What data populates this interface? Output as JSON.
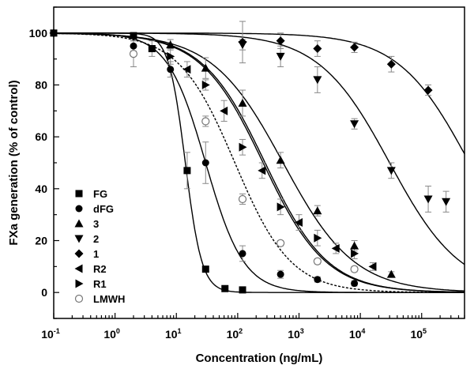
{
  "chart_data": {
    "type": "scatter",
    "title": "",
    "xlabel": "Concentration (ng/mL)",
    "ylabel": "FXa generation (% of control)",
    "xscale": "log",
    "xlim": [
      0.1,
      500000
    ],
    "ylim": [
      -10,
      110
    ],
    "x_ticks": [
      {
        "value": 0.1,
        "base": "10",
        "exp": "-1"
      },
      {
        "value": 1,
        "base": "10",
        "exp": "0"
      },
      {
        "value": 10,
        "base": "10",
        "exp": "1"
      },
      {
        "value": 100,
        "base": "10",
        "exp": "2"
      },
      {
        "value": 1000,
        "base": "10",
        "exp": "3"
      },
      {
        "value": 10000,
        "base": "10",
        "exp": "4"
      },
      {
        "value": 100000,
        "base": "10",
        "exp": "5"
      }
    ],
    "y_ticks": [
      {
        "value": 0,
        "label": "0"
      },
      {
        "value": 20,
        "label": "20"
      },
      {
        "value": 40,
        "label": "40"
      },
      {
        "value": 60,
        "label": "60"
      },
      {
        "value": 80,
        "label": "80"
      },
      {
        "value": 100,
        "label": "100"
      }
    ],
    "grid": false,
    "legend_position": "bottom-left",
    "series": [
      {
        "name": "FG",
        "marker": "square",
        "fit": {
          "ic50": 14,
          "hill": 3.2,
          "style": "solid"
        },
        "points": [
          {
            "x": 0.1,
            "y": 100,
            "err": 1
          },
          {
            "x": 2,
            "y": 99,
            "err": 1
          },
          {
            "x": 4,
            "y": 94,
            "err": 3
          },
          {
            "x": 15,
            "y": 47,
            "err": 7
          },
          {
            "x": 30,
            "y": 9,
            "err": 1
          },
          {
            "x": 62,
            "y": 1.5,
            "err": 0.5
          },
          {
            "x": 120,
            "y": 1,
            "err": 0.5
          }
        ]
      },
      {
        "name": "dFG",
        "marker": "circle",
        "fit": {
          "ic50": 30,
          "hill": 1.4,
          "style": "solid"
        },
        "points": [
          {
            "x": 2,
            "y": 95,
            "err": 2
          },
          {
            "x": 8,
            "y": 86,
            "err": 3
          },
          {
            "x": 30,
            "y": 50,
            "err": 8
          },
          {
            "x": 120,
            "y": 15,
            "err": 3
          },
          {
            "x": 500,
            "y": 7,
            "err": 1.5
          },
          {
            "x": 2000,
            "y": 5,
            "err": 1
          },
          {
            "x": 8000,
            "y": 3.5,
            "err": 1
          }
        ]
      },
      {
        "name": "3",
        "marker": "triangle-up",
        "fit": {
          "ic50": 550,
          "hill": 0.75,
          "style": "solid"
        },
        "points": [
          {
            "x": 8,
            "y": 95.5,
            "err": 2
          },
          {
            "x": 30,
            "y": 86.5,
            "err": 4
          },
          {
            "x": 120,
            "y": 73,
            "err": 5
          },
          {
            "x": 500,
            "y": 51,
            "err": 3
          },
          {
            "x": 2000,
            "y": 31.5,
            "err": 2
          },
          {
            "x": 8000,
            "y": 18,
            "err": 2
          },
          {
            "x": 32000,
            "y": 7,
            "err": 1
          }
        ]
      },
      {
        "name": "2",
        "marker": "triangle-down",
        "fit": {
          "ic50": 30000,
          "hill": 0.75,
          "style": "solid"
        },
        "points": [
          {
            "x": 120,
            "y": 95.5,
            "err": 2
          },
          {
            "x": 500,
            "y": 91,
            "err": 4
          },
          {
            "x": 2000,
            "y": 82,
            "err": 5
          },
          {
            "x": 8000,
            "y": 65,
            "err": 2
          },
          {
            "x": 32000,
            "y": 47,
            "err": 3
          },
          {
            "x": 128000,
            "y": 36,
            "err": 5
          },
          {
            "x": 250000,
            "y": 35,
            "err": 4
          }
        ]
      },
      {
        "name": "1",
        "marker": "diamond",
        "fit": {
          "ic50": 600000,
          "hill": 0.75,
          "style": "solid"
        },
        "points": [
          {
            "x": 0.1,
            "y": 100,
            "err": 1
          },
          {
            "x": 120,
            "y": 96.5,
            "err": 8
          },
          {
            "x": 500,
            "y": 97,
            "err": 3
          },
          {
            "x": 2000,
            "y": 94,
            "err": 3
          },
          {
            "x": 8000,
            "y": 94.5,
            "err": 2
          },
          {
            "x": 32000,
            "y": 88,
            "err": 3
          },
          {
            "x": 128000,
            "y": 78,
            "err": 2
          }
        ]
      },
      {
        "name": "R2",
        "marker": "triangle-left",
        "fit": {
          "ic50": 280,
          "hill": 0.85,
          "style": "solid"
        },
        "points": [
          {
            "x": 15,
            "y": 86,
            "err": 3
          },
          {
            "x": 60,
            "y": 70,
            "err": 4
          },
          {
            "x": 250,
            "y": 47,
            "err": 3
          },
          {
            "x": 1000,
            "y": 27,
            "err": 3
          },
          {
            "x": 4000,
            "y": 17,
            "err": 2
          },
          {
            "x": 16000,
            "y": 10,
            "err": 1.5
          }
        ]
      },
      {
        "name": "R1",
        "marker": "triangle-right",
        "fit": {
          "ic50": 260,
          "hill": 0.85,
          "style": "solid"
        },
        "points": [
          {
            "x": 8,
            "y": 91,
            "err": 3
          },
          {
            "x": 30,
            "y": 80,
            "err": 2
          },
          {
            "x": 120,
            "y": 56,
            "err": 3
          },
          {
            "x": 500,
            "y": 33,
            "err": 3
          },
          {
            "x": 2000,
            "y": 21,
            "err": 3
          },
          {
            "x": 8000,
            "y": 15,
            "err": 2
          }
        ]
      },
      {
        "name": "LMWH",
        "marker": "open-circle",
        "fit": {
          "ic50": 90,
          "hill": 0.95,
          "style": "dashed"
        },
        "points": [
          {
            "x": 2,
            "y": 92,
            "err": 5
          },
          {
            "x": 30,
            "y": 66,
            "err": 2
          },
          {
            "x": 120,
            "y": 36,
            "err": 2
          },
          {
            "x": 500,
            "y": 19,
            "err": 1
          },
          {
            "x": 2000,
            "y": 12,
            "err": 1
          },
          {
            "x": 8000,
            "y": 9,
            "err": 1
          }
        ]
      }
    ]
  }
}
